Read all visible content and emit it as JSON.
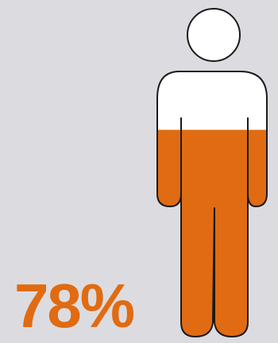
{
  "colors": {
    "background": "#dcdce0",
    "accent": "#e06b12",
    "empty": "#ffffff",
    "outline": "#1a1a1a"
  },
  "icon": "person-icon",
  "chart_data": {
    "type": "pictogram",
    "value": 0.78,
    "value_label": "78%",
    "title": "",
    "fill_direction": "bottom-to-top"
  }
}
